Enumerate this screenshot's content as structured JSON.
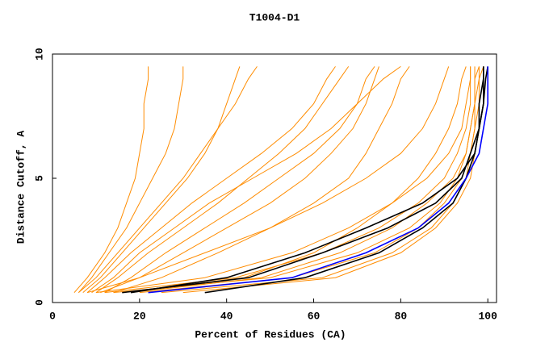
{
  "chart_data": {
    "type": "line",
    "title": "T1004-D1",
    "x_label": "Percent of Residues (CA)",
    "y_label": "Distance Cutoff, A",
    "xlim": [
      0,
      102
    ],
    "ylim": [
      0,
      10
    ],
    "xticks": [
      0,
      20,
      40,
      60,
      80,
      100
    ],
    "yticks": [
      0,
      5,
      10
    ],
    "series": [
      {
        "color": "#ff8c00",
        "x": [
          5,
          8,
          12,
          15,
          17,
          19,
          20,
          21,
          21,
          22,
          22
        ],
        "values": [
          0.4,
          1,
          2,
          3,
          4,
          5,
          6,
          7,
          8,
          9,
          9.5
        ]
      },
      {
        "color": "#ff8c00",
        "x": [
          6,
          10,
          15,
          20,
          25,
          30,
          34,
          38,
          42,
          45,
          47
        ],
        "values": [
          0.4,
          1,
          2,
          3,
          4,
          5,
          6,
          7,
          8,
          9,
          9.5
        ]
      },
      {
        "color": "#ff8c00",
        "x": [
          8,
          12,
          18,
          25,
          32,
          40,
          48,
          55,
          60,
          63,
          65
        ],
        "values": [
          0.4,
          1,
          2,
          3,
          4,
          5,
          6,
          7,
          8,
          9,
          9.5
        ]
      },
      {
        "color": "#ff8c00",
        "x": [
          10,
          15,
          22,
          30,
          38,
          45,
          52,
          58,
          62,
          66,
          68
        ],
        "values": [
          0.4,
          1,
          2,
          3,
          4,
          5,
          6,
          7,
          8,
          9,
          9.5
        ]
      },
      {
        "color": "#ff8c00",
        "x": [
          7,
          11,
          16,
          21,
          26,
          31,
          35,
          38,
          40,
          42,
          43
        ],
        "values": [
          0.4,
          1,
          2,
          3,
          4,
          5,
          6,
          7,
          8,
          9,
          9.5
        ]
      },
      {
        "color": "#ff8c00",
        "x": [
          12,
          18,
          26,
          35,
          44,
          52,
          60,
          66,
          70,
          72,
          74
        ],
        "values": [
          0.4,
          1,
          2,
          3,
          4,
          5,
          6,
          7,
          8,
          9,
          9.5
        ]
      },
      {
        "color": "#ff8c00",
        "x": [
          9,
          14,
          20,
          28,
          36,
          46,
          56,
          64,
          70,
          76,
          80
        ],
        "values": [
          0.4,
          1,
          2,
          3,
          4,
          5,
          6,
          7,
          8,
          9,
          9.5
        ]
      },
      {
        "color": "#ff8c00",
        "x": [
          6,
          9,
          13,
          17,
          20,
          23,
          26,
          28,
          29,
          30,
          30
        ],
        "values": [
          0.4,
          1,
          2,
          3,
          4,
          5,
          6,
          7,
          8,
          9,
          9.5
        ]
      },
      {
        "color": "#ff8c00",
        "x": [
          11,
          20,
          30,
          40,
          50,
          58,
          64,
          69,
          72,
          74,
          75
        ],
        "values": [
          0.4,
          1,
          2,
          3,
          4,
          5,
          6,
          7,
          8,
          9,
          9.5
        ]
      },
      {
        "color": "#ff8c00",
        "x": [
          14,
          25,
          38,
          50,
          60,
          68,
          72,
          75,
          78,
          80,
          82
        ],
        "values": [
          0.4,
          1,
          2,
          3,
          4,
          5,
          6,
          7,
          8,
          9,
          9.5
        ]
      },
      {
        "color": "#ff8c00",
        "x": [
          8,
          20,
          35,
          50,
          62,
          72,
          80,
          85,
          88,
          90,
          91
        ],
        "values": [
          0.4,
          1,
          2,
          3,
          4,
          5,
          6,
          7,
          8,
          9,
          9.5
        ]
      },
      {
        "color": "#ff8c00",
        "x": [
          14,
          50,
          70,
          82,
          89,
          93,
          95,
          96,
          97,
          97,
          98
        ],
        "values": [
          0.4,
          1,
          2,
          3,
          4,
          5,
          6,
          7,
          8,
          9,
          9.5
        ]
      },
      {
        "color": "#ff8c00",
        "x": [
          20,
          55,
          74,
          84,
          90,
          94,
          96,
          97,
          97,
          97,
          97
        ],
        "values": [
          0.4,
          1,
          2,
          3,
          4,
          5,
          6,
          7,
          8,
          9,
          9.5
        ]
      },
      {
        "color": "#ff8c00",
        "x": [
          25,
          62,
          78,
          87,
          92,
          95,
          96,
          97,
          98,
          98,
          98
        ],
        "values": [
          0.4,
          1,
          2,
          3,
          4,
          5,
          6,
          7,
          8,
          9,
          9.5
        ]
      },
      {
        "color": "#ff8c00",
        "x": [
          12,
          42,
          62,
          75,
          84,
          90,
          93,
          95,
          96,
          96,
          96
        ],
        "values": [
          0.4,
          1,
          2,
          3,
          4,
          5,
          6,
          7,
          8,
          9,
          9.5
        ]
      },
      {
        "color": "#ff8c00",
        "x": [
          18,
          48,
          66,
          78,
          86,
          92,
          95,
          96,
          97,
          98,
          99
        ],
        "values": [
          0.4,
          1,
          2,
          3,
          4,
          5,
          6,
          7,
          8,
          9,
          9.5
        ]
      },
      {
        "color": "#ff8c00",
        "x": [
          30,
          65,
          80,
          88,
          93,
          96,
          97,
          98,
          99,
          99,
          99
        ],
        "values": [
          0.4,
          1,
          2,
          3,
          4,
          5,
          6,
          7,
          8,
          9,
          9.5
        ]
      },
      {
        "color": "#ff8c00",
        "x": [
          10,
          35,
          55,
          68,
          78,
          86,
          91,
          94,
          95,
          96,
          96
        ],
        "values": [
          0.4,
          1,
          2,
          3,
          4,
          5,
          6,
          7,
          8,
          9,
          9.5
        ]
      },
      {
        "color": "#ff8c00",
        "x": [
          16,
          44,
          60,
          70,
          78,
          84,
          88,
          91,
          93,
          94,
          95
        ],
        "values": [
          0.4,
          1,
          2,
          3,
          4,
          5,
          6,
          7,
          8,
          9,
          9.5
        ]
      },
      {
        "color": "#000000",
        "x": [
          16,
          45,
          62,
          77,
          88,
          94,
          96,
          98,
          98,
          99,
          99
        ],
        "values": [
          0.4,
          1,
          2,
          3,
          4,
          5,
          6,
          7,
          8,
          9,
          9.5
        ]
      },
      {
        "color": "#000000",
        "x": [
          18,
          40,
          58,
          72,
          85,
          93,
          97,
          98,
          99,
          99,
          99
        ],
        "values": [
          0.4,
          1,
          2,
          3,
          4,
          5,
          6,
          7,
          8,
          9,
          9.5
        ]
      },
      {
        "color": "#000000",
        "x": [
          35,
          58,
          75,
          85,
          92,
          95,
          97,
          98,
          99,
          99.5,
          100
        ],
        "values": [
          0.4,
          1,
          2,
          3,
          4,
          5,
          6,
          7,
          8,
          9,
          9.5
        ]
      },
      {
        "color": "#0000ff",
        "x": [
          22,
          55,
          72,
          84,
          91,
          95,
          98,
          99,
          100,
          100,
          100
        ],
        "values": [
          0.4,
          1,
          2,
          3,
          4,
          5,
          6,
          7,
          8,
          9,
          9.5
        ]
      }
    ]
  }
}
